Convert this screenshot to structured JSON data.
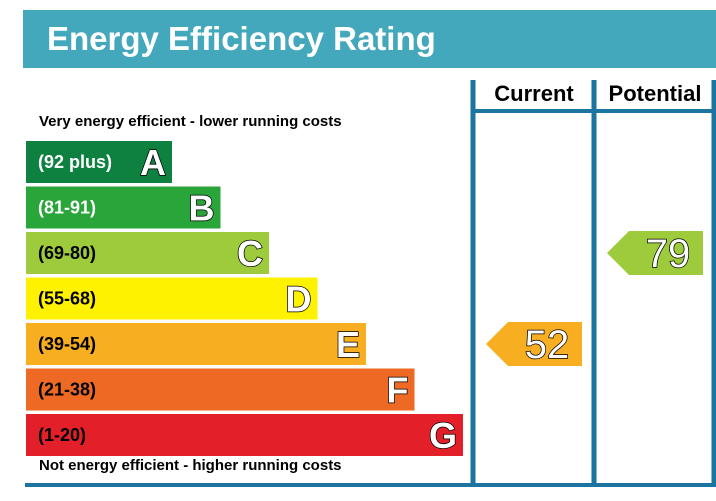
{
  "header": {
    "title": "Energy Efficiency Rating"
  },
  "columns": {
    "current": "Current",
    "potential": "Potential"
  },
  "captions": {
    "top": "Very energy efficient - lower running costs",
    "bottom": "Not energy efficient - higher running costs"
  },
  "colors": {
    "header": "#44a8bd",
    "frame": "#1b75a0",
    "band_A": "#0e8040",
    "band_B": "#2aa53a",
    "band_C": "#9dcb3c",
    "band_D": "#fff200",
    "band_E": "#f8ae21",
    "band_F": "#ee6a24",
    "band_G": "#e3202a"
  },
  "chart_data": {
    "type": "bar",
    "bands": [
      {
        "letter": "A",
        "range": "(92 plus)",
        "min": 92,
        "max": 100,
        "color": "#0e8040",
        "text_color": "#ffffff"
      },
      {
        "letter": "B",
        "range": "(81-91)",
        "min": 81,
        "max": 91,
        "color": "#2aa53a",
        "text_color": "#ffffff"
      },
      {
        "letter": "C",
        "range": "(69-80)",
        "min": 69,
        "max": 80,
        "color": "#9dcb3c",
        "text_color": "#000000"
      },
      {
        "letter": "D",
        "range": "(55-68)",
        "min": 55,
        "max": 68,
        "color": "#fff200",
        "text_color": "#000000"
      },
      {
        "letter": "E",
        "range": "(39-54)",
        "min": 39,
        "max": 54,
        "color": "#f8ae21",
        "text_color": "#000000"
      },
      {
        "letter": "F",
        "range": "(21-38)",
        "min": 21,
        "max": 38,
        "color": "#ee6a24",
        "text_color": "#000000"
      },
      {
        "letter": "G",
        "range": "(1-20)",
        "min": 1,
        "max": 20,
        "color": "#e3202a",
        "text_color": "#000000"
      }
    ],
    "current": {
      "value": 52,
      "band": "E",
      "color": "#f8ae21"
    },
    "potential": {
      "value": 79,
      "band": "C",
      "color": "#9dcb3c"
    }
  }
}
